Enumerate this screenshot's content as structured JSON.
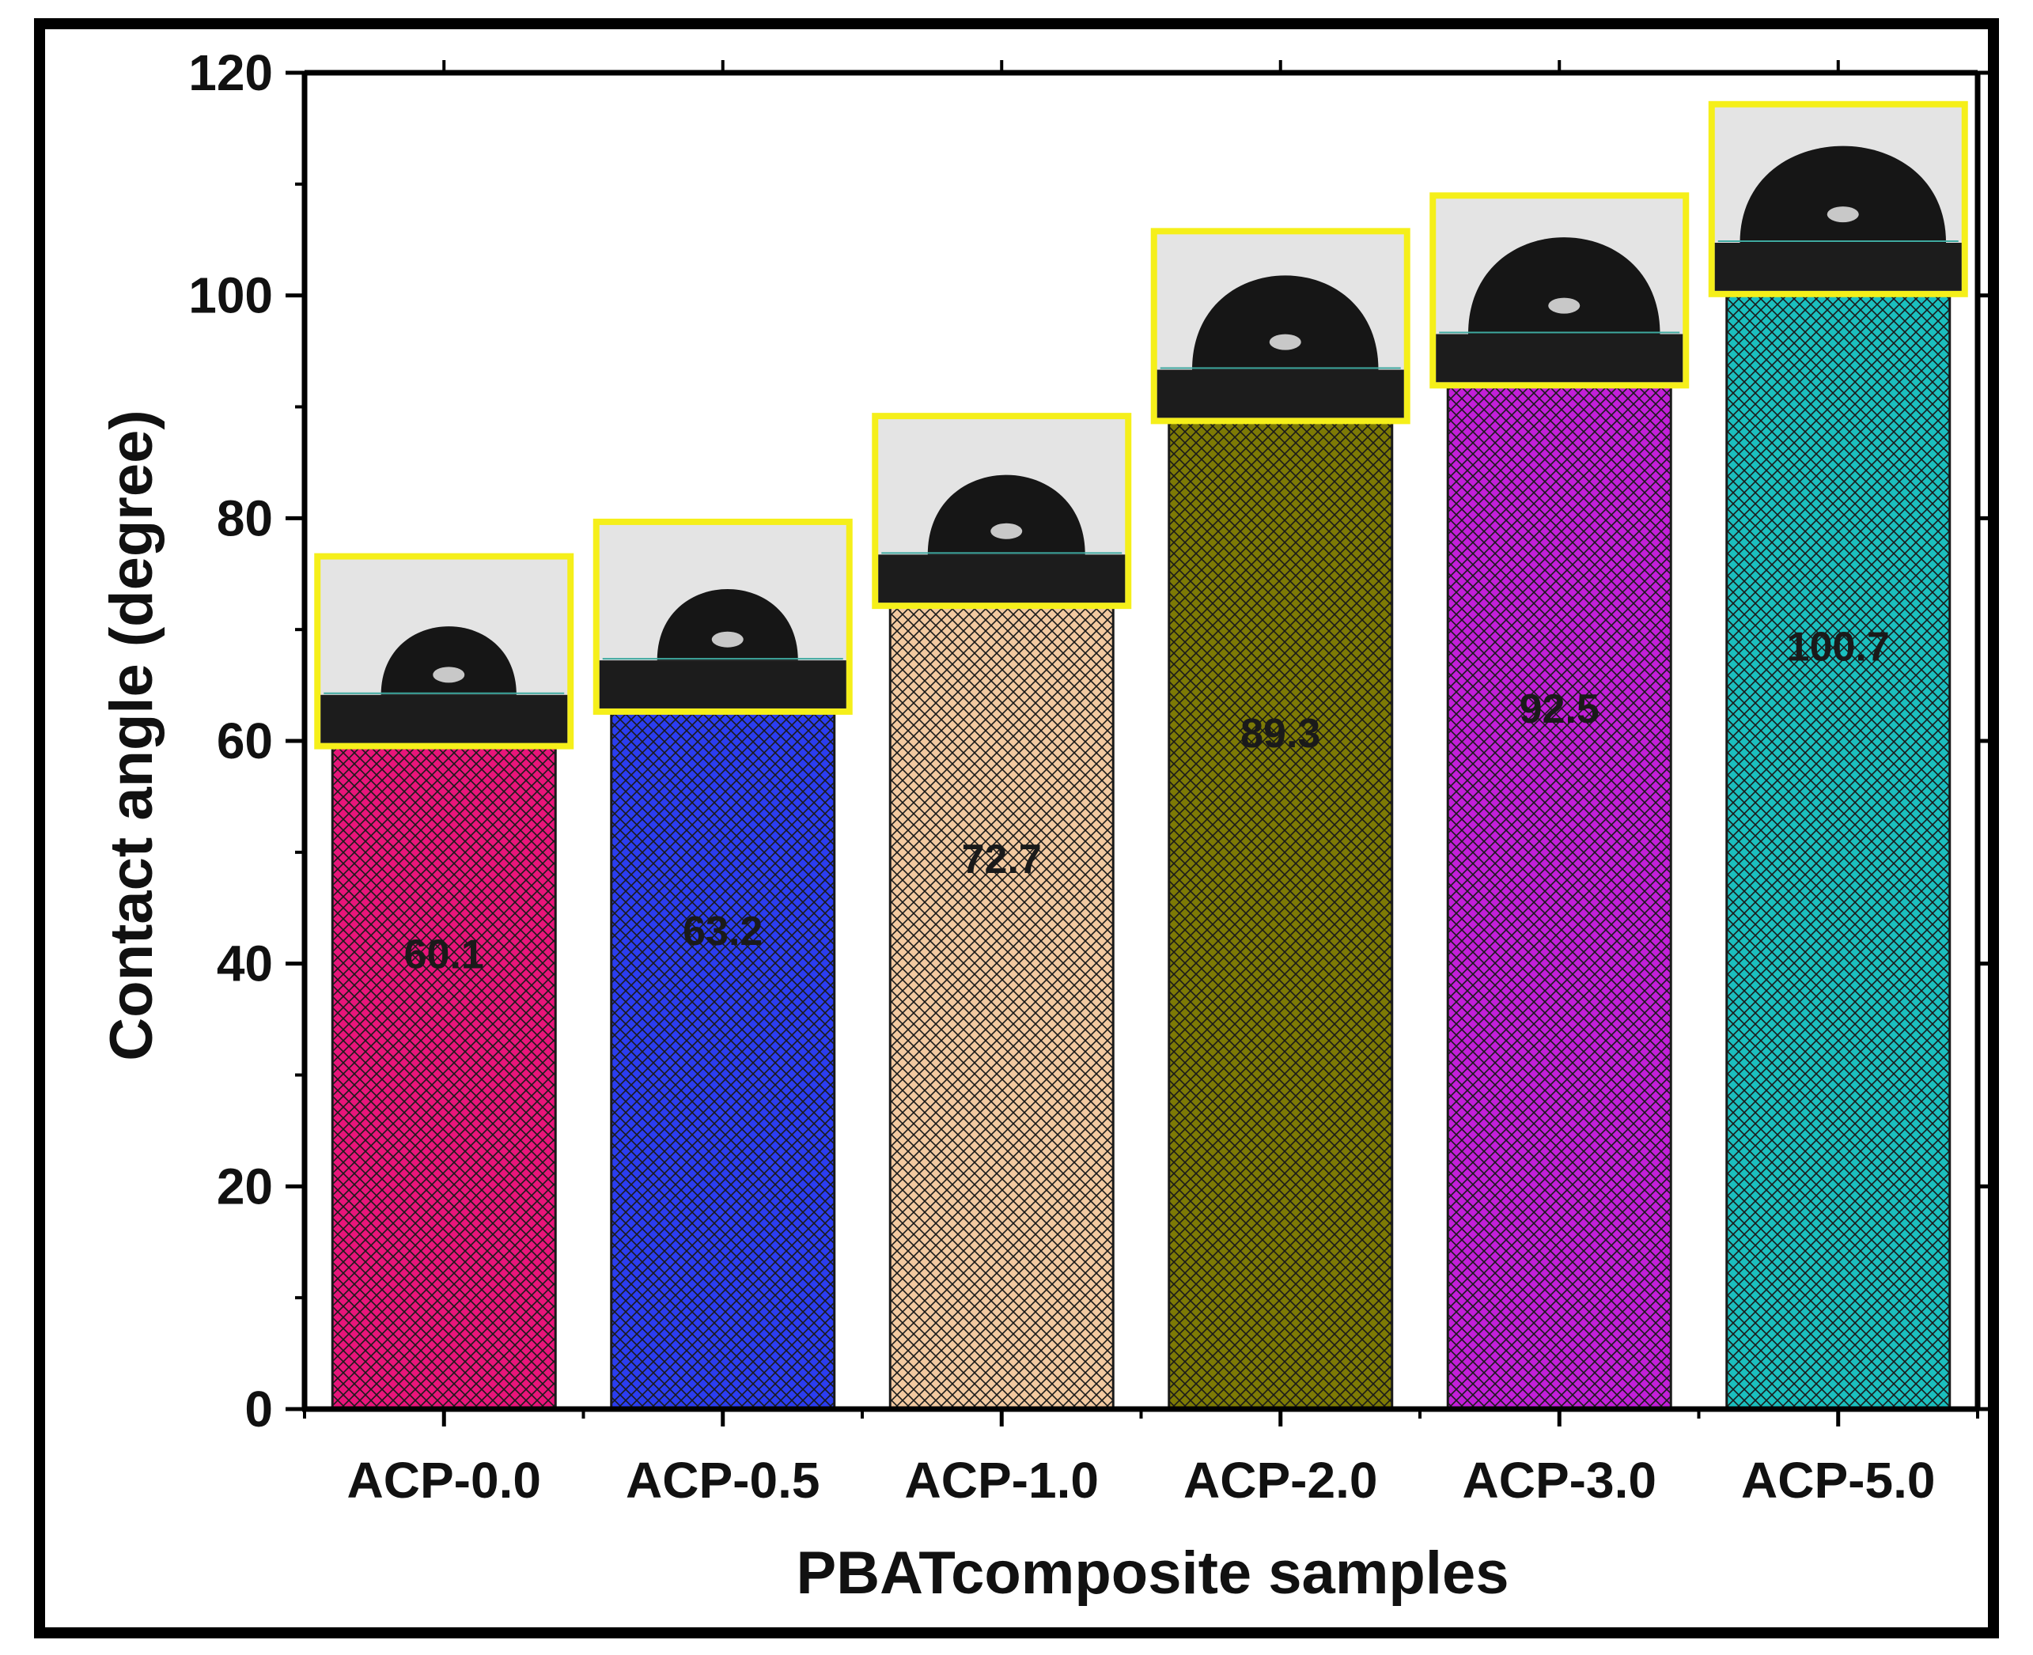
{
  "chart_data": {
    "type": "bar",
    "title": "",
    "xlabel": "PBATcomposite samples",
    "ylabel": "Contact angle (degree)",
    "categories": [
      "ACP-0.0",
      "ACP-0.5",
      "ACP-1.0",
      "ACP-2.0",
      "ACP-3.0",
      "ACP-5.0"
    ],
    "values": [
      60.1,
      63.2,
      72.7,
      89.3,
      92.5,
      100.7
    ],
    "data_labels": [
      "60.1",
      "63.2",
      "72.7",
      "89.3",
      "92.5",
      "100.7"
    ],
    "bar_colors": [
      "#e8157a",
      "#2b3df0",
      "#f2c9a0",
      "#7d7a05",
      "#c21fd8",
      "#1bbfbe"
    ],
    "bar_pattern": "crosshatch",
    "ylim": [
      0,
      120
    ],
    "yticks": [
      "0",
      "20",
      "40",
      "60",
      "80",
      "100",
      "120"
    ],
    "grid": false,
    "legend": "none",
    "insets": {
      "description_kind": "water droplet photographs above each bar",
      "frame_color": "#f5ef1a"
    }
  }
}
